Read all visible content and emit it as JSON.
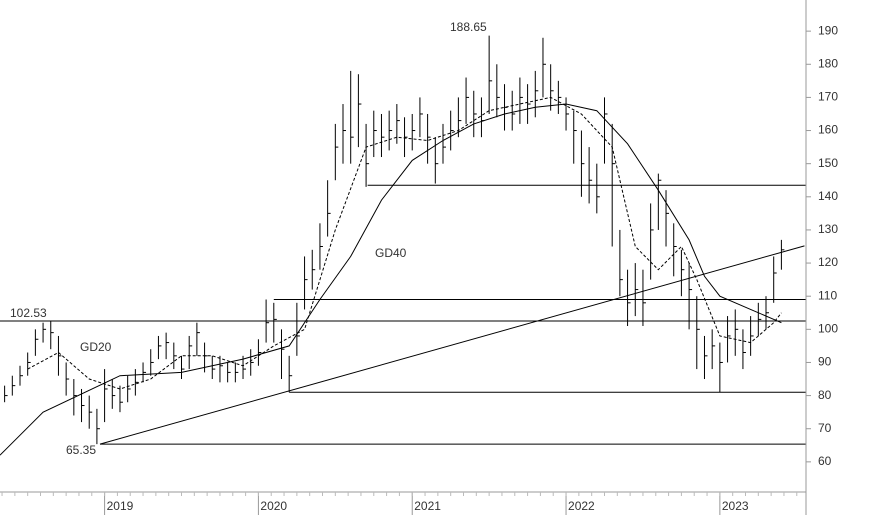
{
  "chart_data": {
    "type": "ohlc",
    "color": "#000000",
    "x": [
      2018.35,
      2018.4,
      2018.45,
      2018.5,
      2018.55,
      2018.6,
      2018.65,
      2018.7,
      2018.75,
      2018.8,
      2018.85,
      2018.9,
      2018.95,
      2019,
      2019.05,
      2019.1,
      2019.15,
      2019.2,
      2019.25,
      2019.3,
      2019.35,
      2019.4,
      2019.45,
      2019.5,
      2019.55,
      2019.6,
      2019.65,
      2019.7,
      2019.75,
      2019.8,
      2019.85,
      2019.9,
      2019.95,
      2020,
      2020.05,
      2020.1,
      2020.15,
      2020.2,
      2020.25,
      2020.3,
      2020.35,
      2020.4,
      2020.45,
      2020.5,
      2020.55,
      2020.6,
      2020.65,
      2020.7,
      2020.75,
      2020.8,
      2020.85,
      2020.9,
      2020.95,
      2021,
      2021.05,
      2021.1,
      2021.15,
      2021.2,
      2021.25,
      2021.3,
      2021.35,
      2021.4,
      2021.45,
      2021.5,
      2021.55,
      2021.6,
      2021.65,
      2021.7,
      2021.75,
      2021.8,
      2021.85,
      2021.9,
      2021.95,
      2022,
      2022.05,
      2022.1,
      2022.15,
      2022.2,
      2022.25,
      2022.3,
      2022.35,
      2022.4,
      2022.45,
      2022.5,
      2022.55,
      2022.6,
      2022.65,
      2022.7,
      2022.75,
      2022.8,
      2022.85,
      2022.9,
      2022.95,
      2023,
      2023.05,
      2023.1,
      2023.15,
      2023.2,
      2023.25,
      2023.3,
      2023.35,
      2023.4
    ],
    "high": [
      83,
      86,
      89,
      93,
      100,
      102,
      102.5,
      98,
      90,
      85,
      82,
      80,
      76,
      88,
      85,
      83,
      86,
      88,
      90,
      94,
      98,
      99,
      96,
      92,
      98,
      102,
      96,
      92,
      92,
      90,
      90,
      92,
      94,
      97,
      109,
      108,
      100,
      92,
      108,
      122,
      124,
      132,
      145,
      162,
      168,
      178,
      177,
      162,
      166,
      165,
      166,
      168,
      164,
      165,
      170,
      165,
      158,
      162,
      166,
      170,
      176,
      172,
      170,
      188.65,
      180,
      174,
      172,
      176,
      174,
      178,
      188,
      180,
      175,
      170,
      166,
      160,
      155,
      150,
      170,
      162,
      130,
      118,
      120,
      118,
      138,
      147,
      142,
      132,
      124,
      120,
      110,
      98,
      100,
      96,
      104,
      106,
      100,
      104,
      108,
      110,
      122,
      127
    ],
    "low": [
      78,
      80,
      83,
      86,
      92,
      96,
      94,
      86,
      80,
      74,
      72,
      70,
      65.35,
      72,
      76,
      75,
      78,
      80,
      84,
      86,
      91,
      91,
      88,
      85,
      88,
      92,
      87,
      85,
      84,
      84,
      84,
      85,
      86,
      89,
      96,
      96,
      85,
      81,
      92,
      106,
      112,
      118,
      128,
      145,
      150,
      150,
      155,
      143,
      152,
      152,
      154,
      156,
      152,
      154,
      158,
      150,
      144,
      150,
      154,
      158,
      162,
      158,
      158,
      165,
      164,
      160,
      160,
      162,
      162,
      164,
      170,
      166,
      165,
      160,
      150,
      140,
      138,
      135,
      150,
      125,
      110,
      101,
      104,
      101,
      115,
      130,
      125,
      116,
      110,
      100,
      88,
      85,
      88,
      81,
      90,
      92,
      88,
      92,
      98,
      100,
      108,
      118
    ],
    "close": [
      80,
      83,
      86,
      90,
      97,
      100,
      99,
      92,
      85,
      80,
      77,
      75,
      70,
      82,
      80,
      78,
      82,
      84,
      87,
      90,
      95,
      96,
      92,
      88,
      95,
      99,
      92,
      88,
      89,
      87,
      87,
      88,
      90,
      93,
      102,
      103,
      94,
      86,
      98,
      115,
      118,
      125,
      135,
      155,
      160,
      158,
      168,
      150,
      160,
      158,
      160,
      163,
      158,
      160,
      165,
      158,
      150,
      155,
      160,
      163,
      170,
      165,
      163,
      175,
      170,
      167,
      165,
      170,
      168,
      172,
      180,
      172,
      170,
      165,
      160,
      150,
      145,
      140,
      165,
      150,
      115,
      108,
      112,
      108,
      130,
      145,
      135,
      125,
      118,
      112,
      100,
      92,
      95,
      90,
      98,
      100,
      93,
      98,
      103,
      105,
      117,
      124
    ],
    "series": [
      {
        "name": "GD20",
        "dashed": true,
        "x": [
          2018.5,
          2018.7,
          2018.9,
          2019.1,
          2019.3,
          2019.5,
          2019.7,
          2019.9,
          2020.1,
          2020.3,
          2020.5,
          2020.7,
          2020.9,
          2021.1,
          2021.3,
          2021.5,
          2021.7,
          2021.9,
          2022.1,
          2022.3,
          2022.45,
          2022.6,
          2022.75,
          2022.85,
          2023.0,
          2023.2,
          2023.35,
          2023.4
        ],
        "values": [
          88,
          93,
          85,
          82,
          85,
          92,
          92,
          89,
          95,
          100,
          130,
          155,
          158,
          157,
          160,
          166,
          168,
          170,
          165,
          155,
          125,
          118,
          125,
          115,
          98,
          96,
          102,
          105
        ]
      },
      {
        "name": "GD40",
        "dashed": false,
        "x": [
          2018.32,
          2018.6,
          2019.1,
          2019.5,
          2019.9,
          2020.2,
          2020.4,
          2020.6,
          2020.8,
          2021.0,
          2021.2,
          2021.4,
          2021.6,
          2021.8,
          2022.0,
          2022.2,
          2022.4,
          2022.6,
          2022.8,
          2022.9,
          2023.0,
          2023.2,
          2023.4
        ],
        "values": [
          62,
          75,
          86,
          87,
          91,
          95,
          109,
          122,
          139,
          151,
          157,
          162,
          165,
          167,
          168,
          166,
          156,
          142,
          127,
          116,
          110,
          106,
          102
        ]
      }
    ],
    "levels": [
      {
        "value": 143.5,
        "start": 2020.71
      },
      {
        "value": 109,
        "start": 2020.1
      },
      {
        "value": 102.53,
        "start": 2018.32
      },
      {
        "value": 81,
        "start": 2020.2
      },
      {
        "value": 65.35,
        "start": 2018.97
      }
    ],
    "trend_line": {
      "x": [
        2018.97,
        2023.55
      ],
      "y": [
        65.35,
        125.2
      ]
    },
    "xlim": [
      2018.32,
      2023.56
    ],
    "xticks": [
      2019,
      2020,
      2021,
      2022,
      2023
    ],
    "ylim": [
      50.9,
      199.4
    ],
    "yticks": [
      60,
      70,
      80,
      90,
      100,
      110,
      120,
      130,
      140,
      150,
      160,
      170,
      180,
      190
    ]
  }
}
